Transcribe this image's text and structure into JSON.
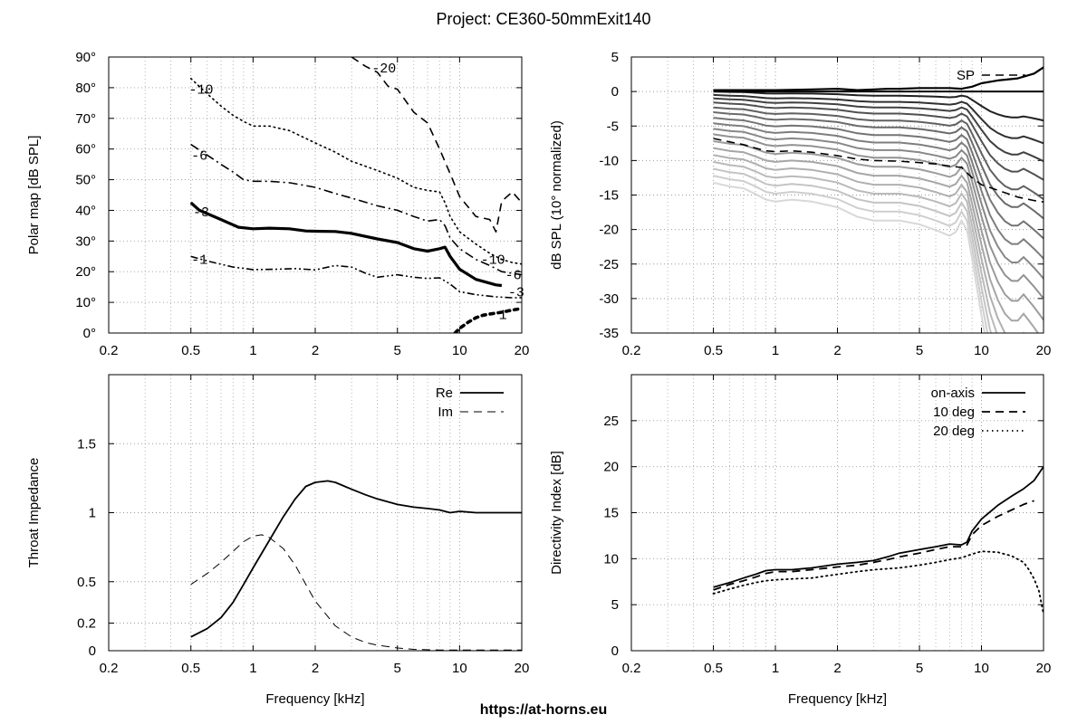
{
  "title": "Project: CE360-50mmExit140",
  "footer": "https://at-horns.eu",
  "chart_data": [
    {
      "id": "polar",
      "type": "line",
      "xlabel": "",
      "ylabel": "Polar map [dB SPL]",
      "xscale": "log",
      "xlim": [
        0.2,
        20
      ],
      "ylim": [
        0,
        90
      ],
      "xticks": [
        0.2,
        0.5,
        1,
        2,
        5,
        10,
        20
      ],
      "xtick_labels": [
        "0.2",
        "0.5",
        "1",
        "2",
        "5",
        "10",
        "20"
      ],
      "yticks": [
        0,
        10,
        20,
        30,
        40,
        50,
        60,
        70,
        80,
        90
      ],
      "ytick_labels": [
        "0°",
        "10°",
        "20°",
        "30°",
        "40°",
        "50°",
        "60°",
        "70°",
        "80°",
        "90°"
      ],
      "grid": true,
      "series": [
        {
          "name": "-1",
          "style": "dashdotdot",
          "width": 1.6,
          "x": [
            0.5,
            0.6,
            0.8,
            1,
            1.3,
            1.6,
            2,
            2.5,
            3,
            3.5,
            4,
            5,
            6,
            7,
            8,
            9,
            10,
            12,
            15,
            18,
            20
          ],
          "y": [
            25,
            23.5,
            21.5,
            20.7,
            20.8,
            21,
            20.6,
            22,
            21.5,
            19.5,
            18.2,
            19,
            18.2,
            17.8,
            18,
            16,
            13.5,
            12.5,
            11.8,
            11.5,
            11.5
          ]
        },
        {
          "name": "-3",
          "style": "solid",
          "width": 3.2,
          "x": [
            0.5,
            0.55,
            0.7,
            0.85,
            1,
            1.2,
            1.5,
            1.8,
            2,
            2.5,
            3,
            4,
            5,
            6,
            7,
            8,
            8.5,
            9,
            10,
            12,
            15,
            16
          ],
          "y": [
            42.5,
            40,
            37,
            34.5,
            34,
            34.2,
            34,
            33.3,
            33.2,
            33.1,
            32.5,
            30.7,
            29.5,
            27.5,
            26.7,
            27.5,
            28,
            25,
            20.8,
            17.5,
            15.7,
            15.5
          ]
        },
        {
          "name": "-6",
          "style": "dashdot",
          "width": 1.6,
          "x": [
            0.5,
            0.6,
            0.7,
            0.8,
            0.9,
            1,
            1.2,
            1.5,
            2,
            2.5,
            3,
            4,
            5,
            6,
            7,
            8,
            8.5,
            9,
            10,
            12,
            14,
            16,
            18,
            20
          ],
          "y": [
            61.5,
            58,
            55,
            52.5,
            50,
            49.5,
            49.5,
            49,
            47.5,
            45.5,
            44,
            41.5,
            40,
            38,
            36.5,
            37,
            35,
            31,
            27.5,
            24,
            22,
            20,
            19.5,
            19
          ]
        },
        {
          "name": "-10",
          "style": "dotted",
          "width": 1.6,
          "x": [
            0.5,
            0.6,
            0.7,
            0.8,
            0.9,
            1,
            1.2,
            1.5,
            2,
            2.5,
            3,
            4,
            5,
            6,
            7,
            8,
            8.5,
            9,
            10,
            12,
            14,
            16,
            18,
            20
          ],
          "y": [
            83,
            78,
            74,
            71,
            69,
            67.5,
            67.5,
            66,
            62,
            59,
            56,
            53,
            50.5,
            47.5,
            46.5,
            46,
            42.5,
            38,
            33,
            29,
            26,
            24,
            23,
            22.5
          ]
        },
        {
          "name": "-20",
          "style": "dashed",
          "width": 1.6,
          "x": [
            3,
            3.5,
            4,
            4.5,
            5,
            6,
            7,
            8,
            9,
            10,
            12,
            14,
            15,
            16,
            18,
            20
          ],
          "y": [
            90,
            87,
            85,
            80.5,
            79.5,
            72,
            68.5,
            60,
            52,
            44.5,
            38,
            37,
            33,
            43,
            46,
            42.5
          ]
        },
        {
          "name": "1",
          "style": "dotted-heavy",
          "width": 3.6,
          "x": [
            9.5,
            10,
            11,
            12,
            13,
            14,
            15,
            16,
            18,
            20
          ],
          "y": [
            0,
            1.5,
            3.5,
            5,
            5.8,
            6.2,
            6.5,
            6.8,
            7.5,
            8
          ]
        }
      ],
      "contour_labels": [
        {
          "text": "-20",
          "x": 4.3,
          "y": 86.5
        },
        {
          "text": "-10",
          "x": 0.56,
          "y": 79.5
        },
        {
          "text": "-6",
          "x": 0.55,
          "y": 58
        },
        {
          "text": "-3",
          "x": 0.56,
          "y": 39.5
        },
        {
          "text": "-1",
          "x": 0.55,
          "y": 24
        },
        {
          "text": "-10",
          "x": 14.5,
          "y": 24
        },
        {
          "text": "-6",
          "x": 18.2,
          "y": 19
        },
        {
          "text": "-3",
          "x": 18.8,
          "y": 13.5
        },
        {
          "text": "1",
          "x": 16.2,
          "y": 6
        }
      ]
    },
    {
      "id": "spl",
      "type": "line",
      "xlabel": "",
      "ylabel": "dB SPL (10° normalized)",
      "xscale": "log",
      "xlim": [
        0.2,
        20
      ],
      "ylim": [
        -35,
        5
      ],
      "xticks": [
        0.2,
        0.5,
        1,
        2,
        5,
        10,
        20
      ],
      "xtick_labels": [
        "0.2",
        "0.5",
        "1",
        "2",
        "5",
        "10",
        "20"
      ],
      "yticks": [
        -35,
        -30,
        -25,
        -20,
        -15,
        -10,
        -5,
        0,
        5
      ],
      "ytick_labels": [
        "-35",
        "-30",
        "-25",
        "-20",
        "-15",
        "-10",
        "-5",
        "0",
        "5"
      ],
      "grid": true,
      "legend": {
        "position": "top-right",
        "entries": [
          "SP"
        ]
      },
      "series": [
        {
          "name": "SP",
          "style": "dashed",
          "color": "#000000",
          "width": 1.6,
          "x": [
            0.5,
            0.6,
            0.7,
            0.8,
            0.9,
            1,
            1.2,
            1.5,
            2,
            2.5,
            3,
            4,
            5,
            6,
            7,
            8,
            9,
            10,
            12,
            15,
            18,
            20
          ],
          "y": [
            -6.8,
            -7.3,
            -7.7,
            -8.2,
            -8.6,
            -8.7,
            -8.6,
            -8.8,
            -9.3,
            -9.8,
            -10,
            -10.1,
            -10.3,
            -10.5,
            -10.8,
            -11,
            -12.5,
            -13.5,
            -14.3,
            -15.3,
            -15.8,
            -16
          ]
        },
        {
          "name": "",
          "role": "reference",
          "color": "#000000",
          "width": 2.2,
          "x": [
            0.5,
            0.8,
            1,
            1.5,
            2,
            2.5,
            3,
            3.5,
            4,
            5,
            6,
            7,
            8,
            9,
            10,
            12,
            15,
            18,
            20
          ],
          "y": [
            0.2,
            0.2,
            0.2,
            0.3,
            0.4,
            0.2,
            0.3,
            0.4,
            0.4,
            0.5,
            0.5,
            0.5,
            0.4,
            0.7,
            1.2,
            1.6,
            1.9,
            2.6,
            3.5
          ]
        },
        {
          "name": "",
          "role": "reference",
          "color": "#000000",
          "width": 2.0,
          "x": [
            0.5,
            1,
            2,
            5,
            8,
            10,
            15,
            20
          ],
          "y": [
            0,
            0,
            0,
            0,
            0,
            0,
            0,
            0
          ]
        }
      ],
      "polar_family": {
        "x": [
          0.5,
          0.6,
          0.7,
          0.8,
          0.9,
          1,
          1.2,
          1.5,
          2,
          2.5,
          3,
          4,
          5,
          6,
          7,
          7.5,
          8,
          8.5,
          9,
          10,
          11,
          12,
          13,
          14,
          15,
          16,
          17,
          18,
          19,
          20
        ],
        "bump": [
          0,
          -0.2,
          -0.3,
          -0.6,
          -0.9,
          -1.0,
          -0.9,
          -1.0,
          -1.3,
          -1.8,
          -2.0,
          -2.0,
          -2.2,
          -2.5,
          -2.8,
          -2.6,
          -2.0,
          -2.5,
          -4.0,
          -7.0,
          -9.5,
          -11.0,
          -12.0,
          -12.5,
          -12.5,
          -12.0,
          -12.5,
          -13.0,
          -13.5,
          -14.0
        ],
        "curves": [
          {
            "start": 0.0,
            "gray": "#202020",
            "hf": 0.0
          },
          {
            "start": -0.5,
            "gray": "#303030",
            "hf": 0.2
          },
          {
            "start": -1.0,
            "gray": "#404040",
            "hf": 0.35
          },
          {
            "start": -1.6,
            "gray": "#505050",
            "hf": 0.5
          },
          {
            "start": -2.3,
            "gray": "#606060",
            "hf": 0.65
          },
          {
            "start": -3.0,
            "gray": "#6a6a6a",
            "hf": 0.8
          },
          {
            "start": -3.8,
            "gray": "#747474",
            "hf": 0.95
          },
          {
            "start": -4.6,
            "gray": "#7e7e7e",
            "hf": 1.1
          },
          {
            "start": -5.4,
            "gray": "#888888",
            "hf": 1.25
          },
          {
            "start": -6.2,
            "gray": "#929292",
            "hf": 1.4
          },
          {
            "start": -7.2,
            "gray": "#9c9c9c",
            "hf": 1.55
          },
          {
            "start": -8.2,
            "gray": "#a6a6a6",
            "hf": 1.7
          },
          {
            "start": -9.2,
            "gray": "#b0b0b0",
            "hf": 1.85
          },
          {
            "start": -10.2,
            "gray": "#bababa",
            "hf": 2.0
          },
          {
            "start": -11.2,
            "gray": "#c4c4c4",
            "hf": 2.15
          },
          {
            "start": -12.2,
            "gray": "#cecece",
            "hf": 2.3
          },
          {
            "start": -13.2,
            "gray": "#d8d8d8",
            "hf": 2.45
          }
        ]
      }
    },
    {
      "id": "impedance",
      "type": "line",
      "xlabel": "Frequency [kHz]",
      "ylabel": "Throat Impedance",
      "xscale": "log",
      "xlim": [
        0.2,
        20
      ],
      "ylim": [
        0,
        2
      ],
      "xticks": [
        0.2,
        0.5,
        1,
        2,
        5,
        10,
        20
      ],
      "xtick_labels": [
        "0.2",
        "0.5",
        "1",
        "2",
        "5",
        "10",
        "20"
      ],
      "yticks": [
        0,
        0.2,
        0.5,
        1,
        1.5
      ],
      "ytick_labels": [
        "0",
        "0.2",
        "0.5",
        "1",
        "1.5"
      ],
      "grid": true,
      "legend": {
        "position": "top-right",
        "entries": [
          "Re",
          "Im"
        ]
      },
      "series": [
        {
          "name": "Re",
          "style": "solid",
          "width": 1.8,
          "x": [
            0.5,
            0.6,
            0.7,
            0.8,
            0.9,
            1,
            1.2,
            1.4,
            1.6,
            1.8,
            2,
            2.3,
            2.5,
            3,
            3.5,
            4,
            5,
            6,
            7,
            8,
            9,
            10,
            12,
            15,
            18,
            20
          ],
          "y": [
            0.1,
            0.16,
            0.24,
            0.35,
            0.48,
            0.6,
            0.8,
            0.97,
            1.1,
            1.19,
            1.22,
            1.23,
            1.22,
            1.17,
            1.13,
            1.1,
            1.06,
            1.04,
            1.03,
            1.02,
            1.0,
            1.01,
            1.0,
            1.0,
            1.0,
            1.0
          ]
        },
        {
          "name": "Im",
          "style": "dashed",
          "width": 1.0,
          "x": [
            0.5,
            0.6,
            0.7,
            0.8,
            0.9,
            1,
            1.1,
            1.2,
            1.4,
            1.6,
            1.8,
            2,
            2.5,
            3,
            3.5,
            4,
            5,
            6,
            8,
            10,
            15,
            20
          ],
          "y": [
            0.48,
            0.56,
            0.64,
            0.72,
            0.79,
            0.83,
            0.84,
            0.82,
            0.74,
            0.62,
            0.48,
            0.36,
            0.18,
            0.1,
            0.06,
            0.04,
            0.02,
            0.01,
            0.005,
            0.005,
            0.005,
            0.005
          ]
        }
      ]
    },
    {
      "id": "directivity",
      "type": "line",
      "xlabel": "Frequency [kHz]",
      "ylabel": "Directivity Index [dB]",
      "xscale": "log",
      "xlim": [
        0.2,
        20
      ],
      "ylim": [
        0,
        30
      ],
      "xticks": [
        0.2,
        0.5,
        1,
        2,
        5,
        10,
        20
      ],
      "xtick_labels": [
        "0.2",
        "0.5",
        "1",
        "2",
        "5",
        "10",
        "20"
      ],
      "yticks": [
        0,
        5,
        10,
        15,
        20,
        25
      ],
      "ytick_labels": [
        "0",
        "5",
        "10",
        "15",
        "20",
        "25"
      ],
      "grid": true,
      "legend": {
        "position": "top-right",
        "entries": [
          "on-axis",
          "10 deg",
          "20 deg"
        ]
      },
      "series": [
        {
          "name": "on-axis",
          "style": "solid",
          "width": 1.8,
          "x": [
            0.5,
            0.6,
            0.7,
            0.8,
            0.9,
            1,
            1.2,
            1.5,
            2,
            2.5,
            3,
            3.5,
            4,
            5,
            6,
            7,
            8,
            8.5,
            9,
            10,
            12,
            14,
            16,
            18,
            20
          ],
          "y": [
            6.9,
            7.4,
            7.9,
            8.3,
            8.7,
            8.8,
            8.8,
            9.0,
            9.4,
            9.6,
            9.8,
            10.2,
            10.6,
            11.0,
            11.3,
            11.6,
            11.5,
            11.8,
            13.0,
            14.3,
            15.8,
            16.8,
            17.6,
            18.5,
            20.0
          ]
        },
        {
          "name": "10 deg",
          "style": "dashed",
          "width": 1.8,
          "x": [
            0.5,
            0.6,
            0.7,
            0.8,
            0.9,
            1,
            1.2,
            1.5,
            2,
            2.5,
            3,
            3.5,
            4,
            5,
            6,
            7,
            8,
            8.5,
            9,
            10,
            12,
            14,
            16,
            18
          ],
          "y": [
            6.6,
            7.2,
            7.6,
            8.0,
            8.4,
            8.6,
            8.6,
            8.8,
            9.1,
            9.3,
            9.6,
            9.9,
            10.2,
            10.6,
            11.0,
            11.3,
            11.3,
            11.5,
            12.6,
            13.6,
            14.6,
            15.3,
            15.9,
            16.3
          ]
        },
        {
          "name": "20 deg",
          "style": "dotted",
          "width": 1.8,
          "x": [
            0.5,
            0.6,
            0.7,
            0.8,
            0.9,
            1,
            1.2,
            1.5,
            2,
            2.5,
            3,
            4,
            5,
            6,
            7,
            8,
            9,
            10,
            12,
            14,
            16,
            17,
            18,
            19,
            20
          ],
          "y": [
            6.2,
            6.7,
            7.1,
            7.4,
            7.6,
            7.7,
            7.8,
            7.9,
            8.3,
            8.6,
            8.8,
            9.0,
            9.3,
            9.6,
            9.9,
            10.1,
            10.5,
            10.8,
            10.7,
            10.3,
            9.6,
            8.8,
            7.8,
            6.5,
            4.0
          ]
        }
      ]
    }
  ]
}
